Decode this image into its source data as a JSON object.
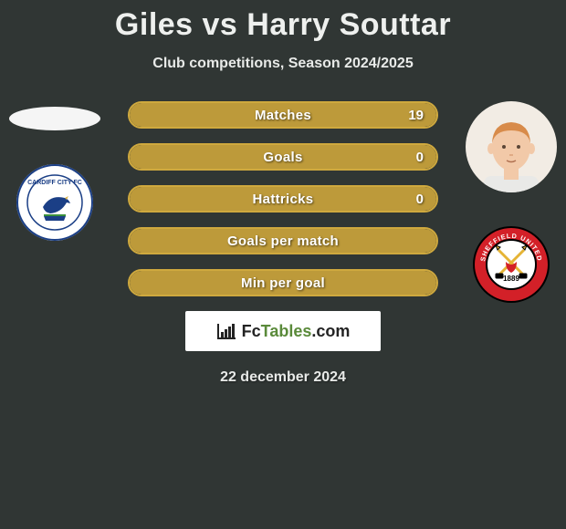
{
  "title": "Giles vs Harry Souttar",
  "subtitle": "Club competitions, Season 2024/2025",
  "date": "22 december 2024",
  "brand": {
    "seg1": "Fc",
    "seg2": "Tables",
    "seg3": ".com"
  },
  "colors": {
    "background": "#303634",
    "bar_fill": "#bd9a3a",
    "bar_border": "#cfa93e",
    "text": "#ffffff"
  },
  "stats": [
    {
      "label": "Matches",
      "value": "19",
      "fill_pct": 100
    },
    {
      "label": "Goals",
      "value": "0",
      "fill_pct": 100
    },
    {
      "label": "Hattricks",
      "value": "0",
      "fill_pct": 100
    },
    {
      "label": "Goals per match",
      "value": "",
      "fill_pct": 100
    },
    {
      "label": "Min per goal",
      "value": "",
      "fill_pct": 100
    }
  ],
  "left": {
    "player_shape": "ellipse",
    "club": {
      "name": "Cardiff City FC",
      "colors": {
        "outer": "#ffffff",
        "ring": "#1b3f86",
        "field": "#ffffff",
        "bird": "#1b3f86"
      }
    }
  },
  "right": {
    "player": {
      "skin": "#f2c9a8",
      "hair": "#d88b4a",
      "shirt": "#e9e9e7"
    },
    "club": {
      "name": "Sheffield United",
      "colors": {
        "outer": "#000000",
        "ring": "#d32028",
        "field": "#ffffff",
        "swords": "#e5b435",
        "year": "1889"
      }
    }
  }
}
